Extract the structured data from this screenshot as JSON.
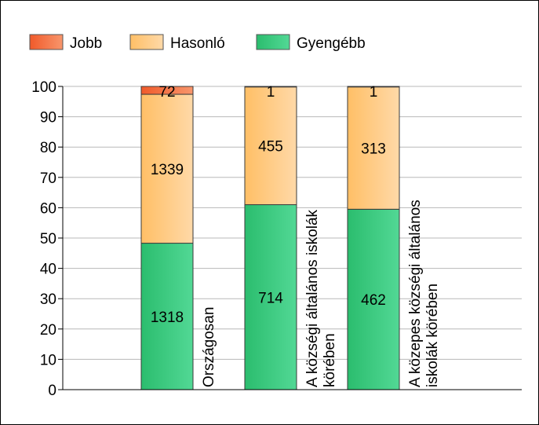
{
  "chart_data": {
    "type": "bar",
    "stacked": "percent",
    "title": "",
    "xlabel": "",
    "ylabel": "",
    "ylim": [
      0,
      100
    ],
    "yticks": [
      0,
      10,
      20,
      30,
      40,
      50,
      60,
      70,
      80,
      90,
      100
    ],
    "grid": true,
    "legend_position": "top-left",
    "categories": [
      [
        "Országosan"
      ],
      [
        "A községi általános iskolák",
        "körében"
      ],
      [
        "A közepes községi általános",
        "iskolák körében"
      ]
    ],
    "series": [
      {
        "name": "Gyengébb",
        "color": "#2ecc71",
        "counts": [
          1318,
          714,
          462
        ],
        "percent": [
          48.3,
          61.0,
          59.5
        ]
      },
      {
        "name": "Hasonló",
        "color": "#ffc880",
        "counts": [
          1339,
          455,
          313
        ],
        "percent": [
          49.1,
          38.9,
          40.4
        ]
      },
      {
        "name": "Jobb",
        "color": "#f4703a",
        "counts": [
          72,
          1,
          1
        ],
        "percent": [
          2.6,
          0.1,
          0.1
        ]
      }
    ]
  }
}
